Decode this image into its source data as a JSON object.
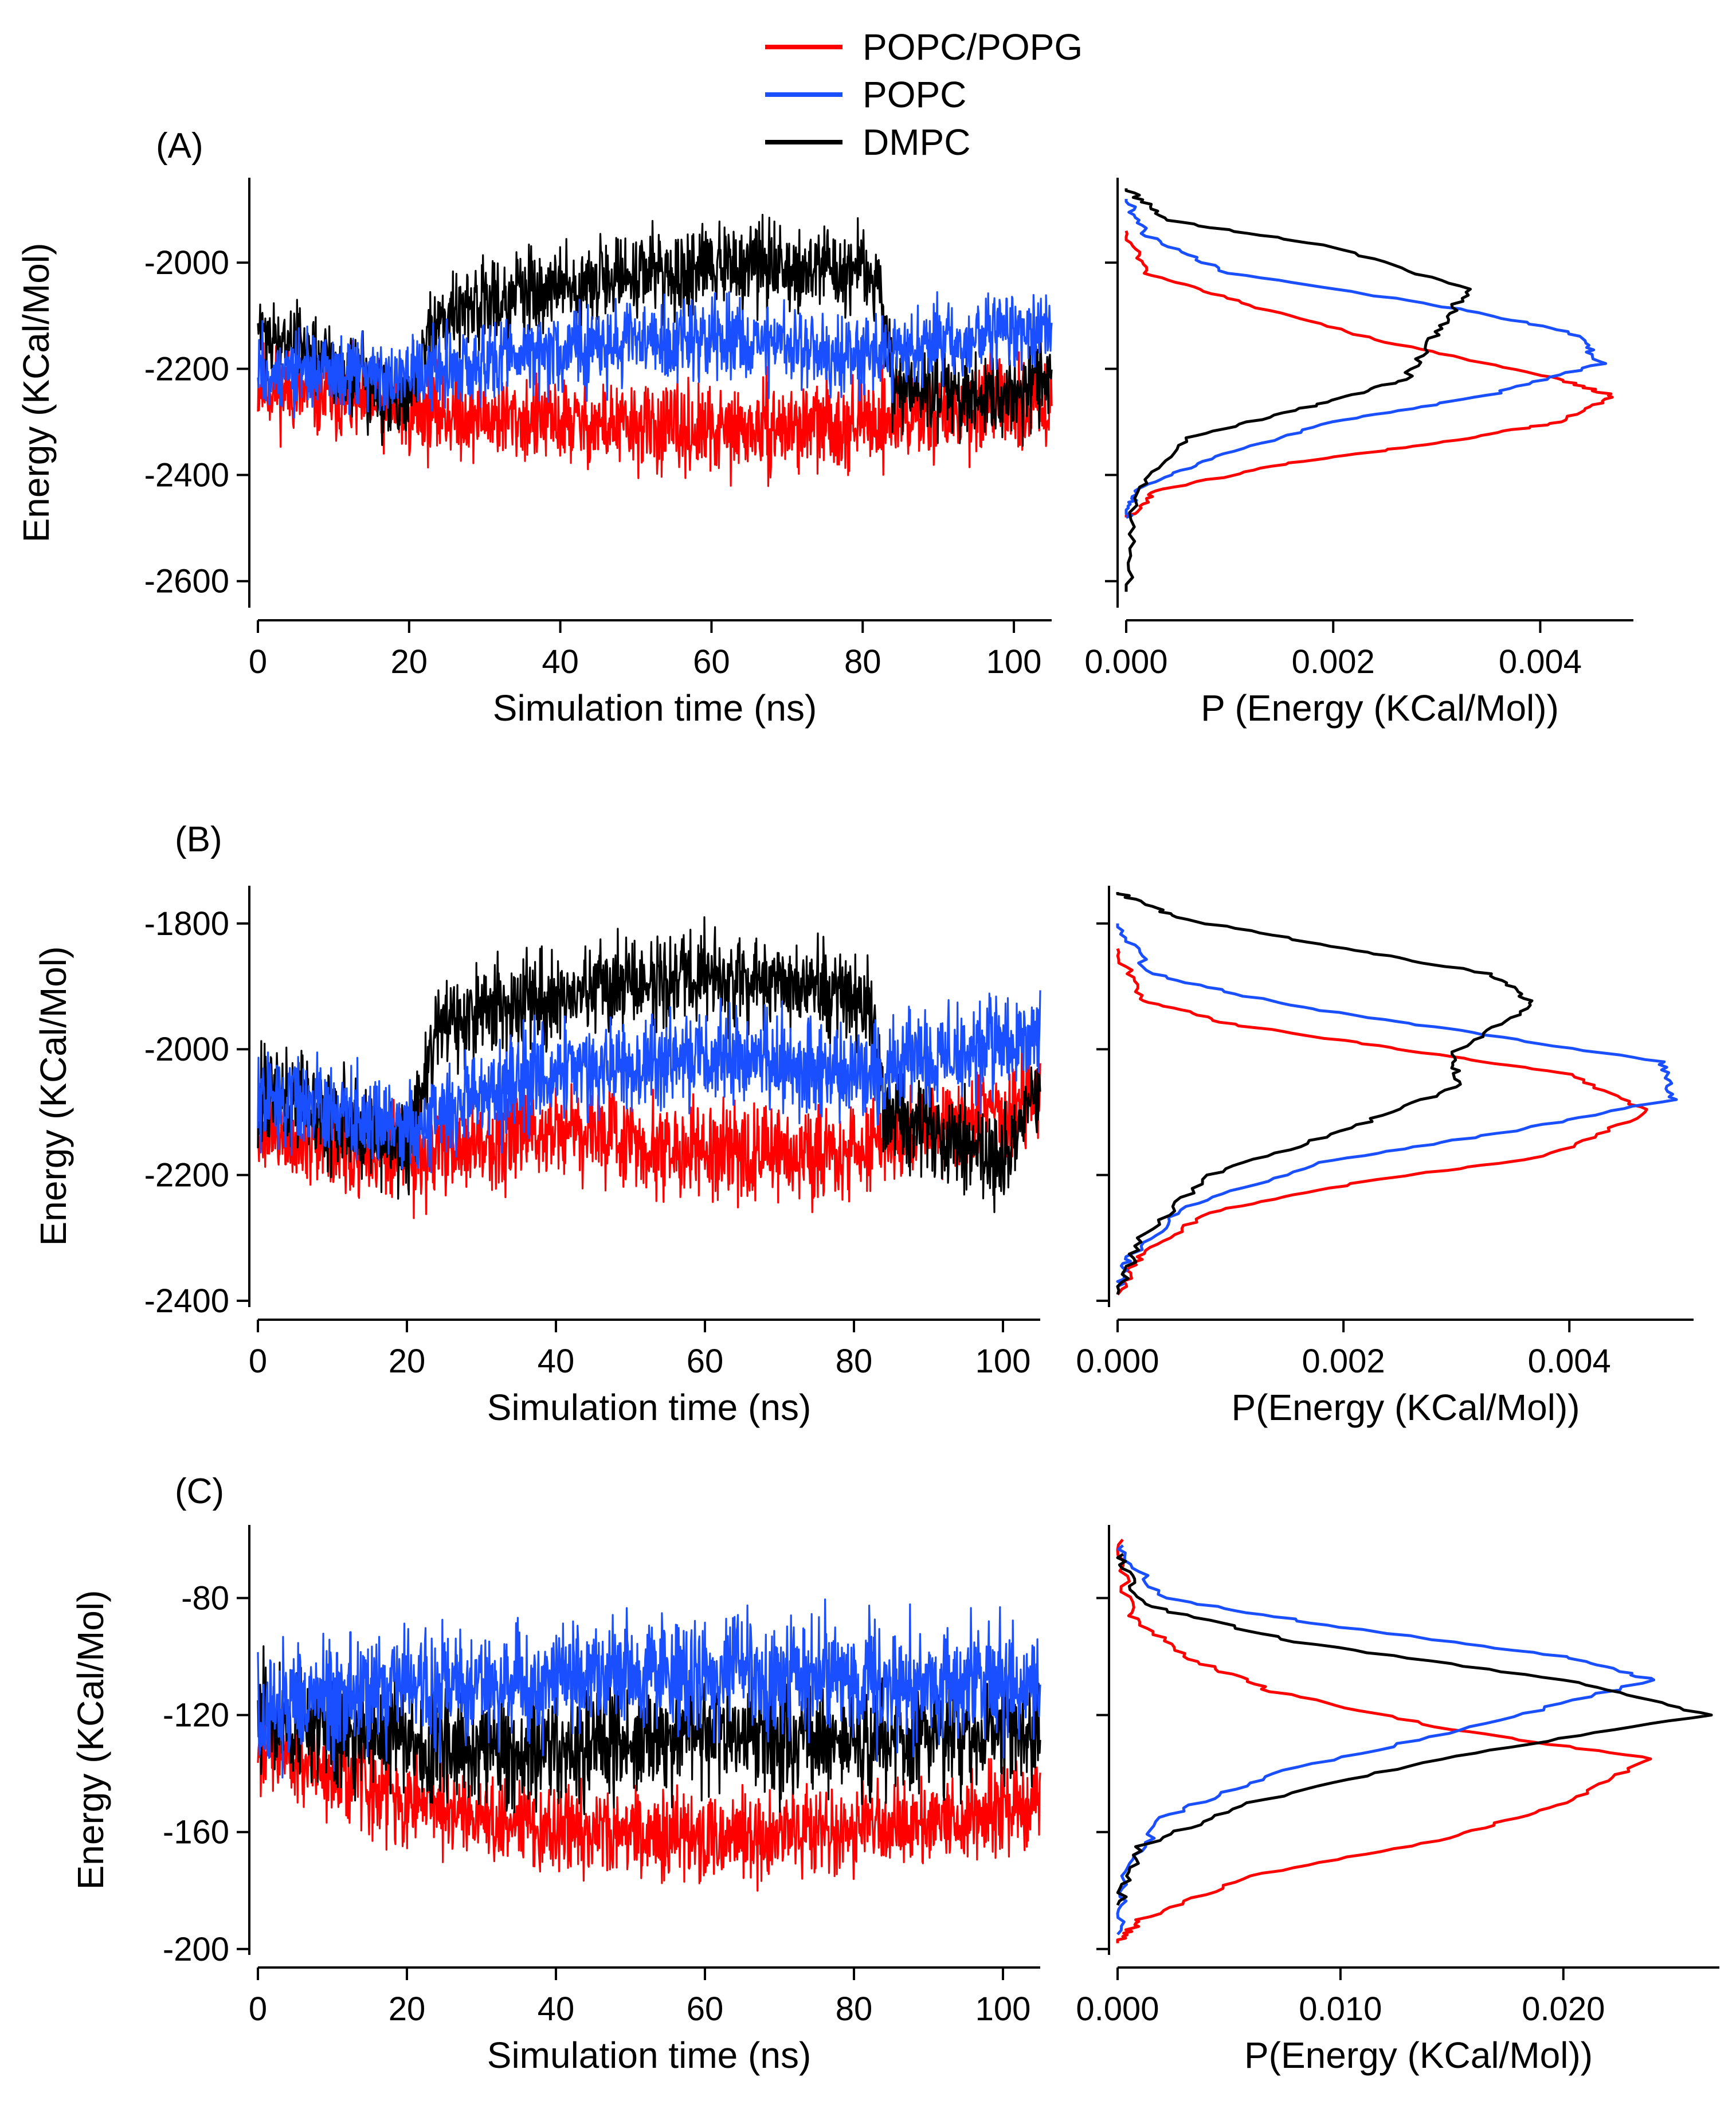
{
  "legend": [
    {
      "label": "POPC/POPG",
      "color": "#ff0000"
    },
    {
      "label": "POPC",
      "color": "#1a4fff"
    },
    {
      "label": "DMPC",
      "color": "#000000"
    }
  ],
  "chart_data": [
    {
      "panel": "(A)",
      "type": "line",
      "xlabel": "Simulation time (ns)",
      "ylabel": "Energy (KCal/Mol)",
      "xlim": [
        0,
        105
      ],
      "ylim": [
        -2650,
        -1840
      ],
      "xticks": [
        0,
        20,
        40,
        60,
        80,
        100
      ],
      "yticks": [
        -2600,
        -2400,
        -2200,
        -2000
      ],
      "series": [
        {
          "name": "POPC/POPG",
          "color": "#ff0000",
          "mean": [
            [
              0,
              -2230
            ],
            [
              20,
              -2280
            ],
            [
              40,
              -2300
            ],
            [
              60,
              -2320
            ],
            [
              80,
              -2300
            ],
            [
              105,
              -2260
            ]
          ],
          "spread": 120
        },
        {
          "name": "DMPC",
          "color": "#000000",
          "mean": [
            [
              0,
              -2120
            ],
            [
              20,
              -2260
            ],
            [
              24,
              -2100
            ],
            [
              40,
              -2040
            ],
            [
              56,
              -2020
            ],
            [
              60,
              -2000
            ],
            [
              82,
              -2020
            ],
            [
              84,
              -2220
            ],
            [
              100,
              -2260
            ],
            [
              105,
              -2200
            ]
          ],
          "spread": 120
        },
        {
          "name": "POPC",
          "color": "#1a4fff",
          "mean": [
            [
              0,
              -2200
            ],
            [
              20,
              -2220
            ],
            [
              40,
              -2160
            ],
            [
              60,
              -2140
            ],
            [
              80,
              -2180
            ],
            [
              105,
              -2120
            ]
          ],
          "spread": 110
        }
      ]
    },
    {
      "panel": "(A)",
      "type": "line",
      "xlabel": "P (Energy (KCal/Mol))",
      "ylabel": "",
      "xlim": [
        0,
        0.0049
      ],
      "ylim": [
        -2650,
        -1840
      ],
      "xticks": [
        0.0,
        0.002,
        0.004
      ],
      "xtick_labels": [
        "0.000",
        "0.002",
        "0.004"
      ],
      "yticks": [
        -2600,
        -2400,
        -2200,
        -2000
      ],
      "series": [
        {
          "name": "POPC/POPG",
          "color": "#ff0000",
          "points": [
            [
              0,
              -1940
            ],
            [
              0.0002,
              -2020
            ],
            [
              0.0012,
              -2080
            ],
            [
              0.0025,
              -2150
            ],
            [
              0.004,
              -2210
            ],
            [
              0.0047,
              -2250
            ],
            [
              0.0042,
              -2300
            ],
            [
              0.003,
              -2340
            ],
            [
              0.0015,
              -2380
            ],
            [
              0.0003,
              -2430
            ],
            [
              0,
              -2480
            ]
          ]
        },
        {
          "name": "POPC",
          "color": "#1a4fff",
          "points": [
            [
              0,
              -1880
            ],
            [
              0.0002,
              -1950
            ],
            [
              0.001,
              -2020
            ],
            [
              0.003,
              -2080
            ],
            [
              0.0043,
              -2130
            ],
            [
              0.0046,
              -2190
            ],
            [
              0.0035,
              -2250
            ],
            [
              0.002,
              -2300
            ],
            [
              0.0008,
              -2370
            ],
            [
              0.0001,
              -2430
            ],
            [
              0,
              -2480
            ]
          ]
        },
        {
          "name": "DMPC",
          "color": "#000000",
          "points": [
            [
              0,
              -1860
            ],
            [
              0.0004,
              -1920
            ],
            [
              0.002,
              -1970
            ],
            [
              0.0033,
              -2050
            ],
            [
              0.003,
              -2130
            ],
            [
              0.0027,
              -2220
            ],
            [
              0.0018,
              -2270
            ],
            [
              0.0006,
              -2330
            ],
            [
              0.0001,
              -2430
            ],
            [
              0,
              -2620
            ]
          ]
        }
      ]
    },
    {
      "panel": "(B)",
      "type": "line",
      "xlabel": "Simulation time (ns)",
      "ylabel": "Energy (KCal/Mol)",
      "xlim": [
        0,
        105
      ],
      "ylim": [
        -2410,
        -1740
      ],
      "xticks": [
        0,
        20,
        40,
        60,
        80,
        100
      ],
      "yticks": [
        -2400,
        -2200,
        -2000,
        -1800
      ],
      "series": [
        {
          "name": "POPC/POPG",
          "color": "#ff0000",
          "mean": [
            [
              0,
              -2120
            ],
            [
              20,
              -2180
            ],
            [
              40,
              -2120
            ],
            [
              60,
              -2170
            ],
            [
              80,
              -2160
            ],
            [
              105,
              -2080
            ]
          ],
          "spread": 110
        },
        {
          "name": "DMPC",
          "color": "#000000",
          "mean": [
            [
              0,
              -2060
            ],
            [
              20,
              -2160
            ],
            [
              24,
              -1960
            ],
            [
              40,
              -1920
            ],
            [
              60,
              -1880
            ],
            [
              82,
              -1920
            ],
            [
              84,
              -2100
            ],
            [
              100,
              -2180
            ],
            [
              105,
              -2060
            ]
          ],
          "spread": 110
        },
        {
          "name": "POPC",
          "color": "#1a4fff",
          "mean": [
            [
              0,
              -2080
            ],
            [
              20,
              -2120
            ],
            [
              40,
              -2030
            ],
            [
              60,
              -2010
            ],
            [
              80,
              -2040
            ],
            [
              105,
              -1980
            ]
          ],
          "spread": 110
        }
      ]
    },
    {
      "panel": "(B)",
      "type": "line",
      "xlabel": "P(Energy (KCal/Mol))",
      "ylabel": "",
      "xlim": [
        0,
        0.0051
      ],
      "ylim": [
        -2410,
        -1740
      ],
      "xticks": [
        0.0,
        0.002,
        0.004
      ],
      "xtick_labels": [
        "0.000",
        "0.002",
        "0.004"
      ],
      "yticks": [
        -2400,
        -2200,
        -2000,
        -1800
      ],
      "series": [
        {
          "name": "POPC/POPG",
          "color": "#ff0000",
          "points": [
            [
              0,
              -1840
            ],
            [
              0.0002,
              -1920
            ],
            [
              0.001,
              -1960
            ],
            [
              0.0025,
              -2000
            ],
            [
              0.004,
              -2040
            ],
            [
              0.0047,
              -2100
            ],
            [
              0.0038,
              -2170
            ],
            [
              0.0022,
              -2210
            ],
            [
              0.0008,
              -2260
            ],
            [
              0.0002,
              -2330
            ],
            [
              0,
              -2390
            ]
          ]
        },
        {
          "name": "POPC",
          "color": "#1a4fff",
          "points": [
            [
              0,
              -1800
            ],
            [
              0.0003,
              -1880
            ],
            [
              0.0015,
              -1930
            ],
            [
              0.003,
              -1970
            ],
            [
              0.0048,
              -2020
            ],
            [
              0.0049,
              -2080
            ],
            [
              0.0035,
              -2130
            ],
            [
              0.0018,
              -2180
            ],
            [
              0.0006,
              -2250
            ],
            [
              0.0001,
              -2330
            ],
            [
              0,
              -2380
            ]
          ]
        },
        {
          "name": "DMPC",
          "color": "#000000",
          "points": [
            [
              0,
              -1750
            ],
            [
              0.0005,
              -1790
            ],
            [
              0.002,
              -1840
            ],
            [
              0.0033,
              -1880
            ],
            [
              0.0037,
              -1930
            ],
            [
              0.003,
              -2000
            ],
            [
              0.003,
              -2060
            ],
            [
              0.002,
              -2130
            ],
            [
              0.0008,
              -2200
            ],
            [
              0.0002,
              -2300
            ],
            [
              0,
              -2390
            ]
          ]
        }
      ]
    },
    {
      "panel": "(C)",
      "type": "line",
      "xlabel": "Simulation time (ns)",
      "ylabel": "Energy (KCal/Mol)",
      "xlim": [
        0,
        105
      ],
      "ylim": [
        -202,
        -55
      ],
      "xticks": [
        0,
        20,
        40,
        60,
        80,
        100
      ],
      "yticks": [
        -200,
        -160,
        -120,
        -80
      ],
      "series": [
        {
          "name": "POPC/POPG",
          "color": "#ff0000",
          "mean": [
            [
              0,
              -130
            ],
            [
              20,
              -150
            ],
            [
              40,
              -160
            ],
            [
              60,
              -162
            ],
            [
              80,
              -160
            ],
            [
              105,
              -150
            ]
          ],
          "spread": 22
        },
        {
          "name": "DMPC",
          "color": "#000000",
          "mean": [
            [
              0,
              -120
            ],
            [
              20,
              -130
            ],
            [
              40,
              -132
            ],
            [
              60,
              -125
            ],
            [
              80,
              -128
            ],
            [
              105,
              -125
            ]
          ],
          "spread": 28
        },
        {
          "name": "POPC",
          "color": "#1a4fff",
          "mean": [
            [
              0,
              -118
            ],
            [
              20,
              -110
            ],
            [
              40,
              -108
            ],
            [
              60,
              -106
            ],
            [
              80,
              -108
            ],
            [
              105,
              -108
            ]
          ],
          "spread": 30
        }
      ]
    },
    {
      "panel": "(C)",
      "type": "line",
      "xlabel": "P(Energy (KCal/Mol))",
      "ylabel": "",
      "xlim": [
        0,
        0.027
      ],
      "ylim": [
        -202,
        -55
      ],
      "xticks": [
        0.0,
        0.01,
        0.02
      ],
      "xtick_labels": [
        "0.000",
        "0.010",
        "0.020"
      ],
      "yticks": [
        -200,
        -160,
        -120,
        -80
      ],
      "series": [
        {
          "name": "POPC/POPG",
          "color": "#ff0000",
          "points": [
            [
              0,
              -60
            ],
            [
              0.0005,
              -85
            ],
            [
              0.003,
              -100
            ],
            [
              0.007,
              -112
            ],
            [
              0.015,
              -125
            ],
            [
              0.024,
              -135
            ],
            [
              0.02,
              -150
            ],
            [
              0.015,
              -162
            ],
            [
              0.006,
              -175
            ],
            [
              0.001,
              -190
            ],
            [
              0,
              -198
            ]
          ]
        },
        {
          "name": "POPC",
          "color": "#1a4fff",
          "points": [
            [
              0,
              -62
            ],
            [
              0.002,
              -80
            ],
            [
              0.01,
              -90
            ],
            [
              0.02,
              -100
            ],
            [
              0.024,
              -108
            ],
            [
              0.016,
              -124
            ],
            [
              0.007,
              -140
            ],
            [
              0.002,
              -155
            ],
            [
              0.0003,
              -175
            ],
            [
              0,
              -195
            ]
          ]
        },
        {
          "name": "DMPC",
          "color": "#000000",
          "points": [
            [
              0,
              -65
            ],
            [
              0.001,
              -82
            ],
            [
              0.008,
              -95
            ],
            [
              0.02,
              -108
            ],
            [
              0.0265,
              -120
            ],
            [
              0.015,
              -134
            ],
            [
              0.006,
              -150
            ],
            [
              0.001,
              -165
            ],
            [
              0,
              -185
            ]
          ]
        }
      ]
    }
  ],
  "panels": [
    {
      "label": "(A)",
      "left": {
        "xlabel": "Simulation time (ns)",
        "ylabel": "Energy (KCal/Mol)"
      },
      "right": {
        "xlabel": "P (Energy (KCal/Mol))"
      }
    },
    {
      "label": "(B)",
      "left": {
        "xlabel": "Simulation time (ns)",
        "ylabel": "Energy (KCal/Mol)"
      },
      "right": {
        "xlabel": "P(Energy (KCal/Mol))"
      }
    },
    {
      "label": "(C)",
      "left": {
        "xlabel": "Simulation time (ns)",
        "ylabel": "Energy (KCal/Mol)"
      },
      "right": {
        "xlabel": "P(Energy (KCal/Mol))"
      }
    }
  ]
}
